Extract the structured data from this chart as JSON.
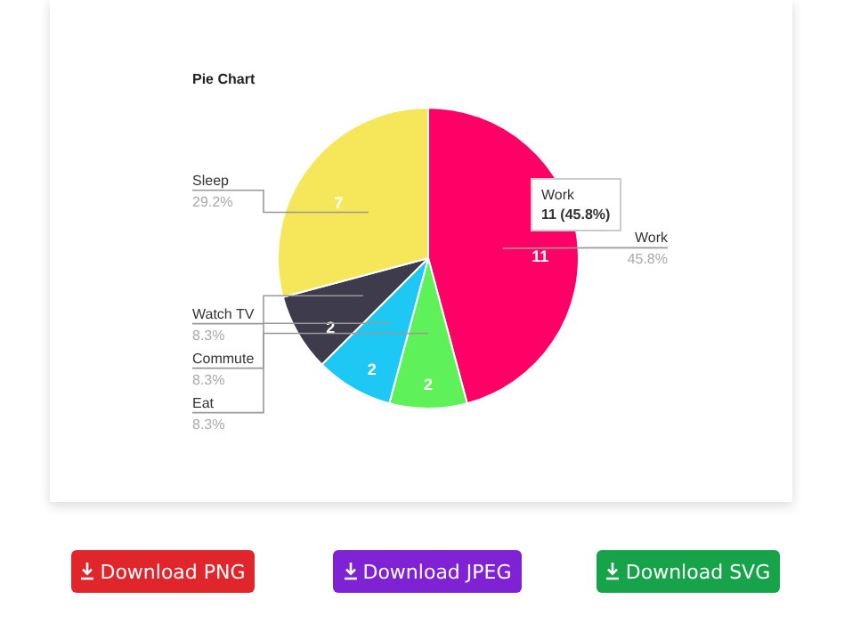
{
  "chart_data": {
    "type": "pie",
    "title": "Pie Chart",
    "categories": [
      "Work",
      "Eat",
      "Commute",
      "Watch TV",
      "Sleep"
    ],
    "values": [
      11,
      2,
      2,
      2,
      7
    ],
    "colors": [
      "#ff0066",
      "#5ef15a",
      "#1ec8f5",
      "#3d3b4c",
      "#f5e65a"
    ],
    "data_labels": true,
    "legend": false,
    "annotations": [
      "Work",
      "11 (45.8%)",
      "Download PNG",
      "Download JPEG",
      "Download SVG",
      {
        "text": "45.8%",
        "x": "Work"
      },
      {
        "text": "8.3%",
        "x": "Eat"
      },
      {
        "text": "8.3%",
        "x": "Commute"
      },
      {
        "text": "8.3%",
        "x": "Watch TV"
      },
      {
        "text": "29.2%",
        "x": "Sleep"
      }
    ]
  }
}
